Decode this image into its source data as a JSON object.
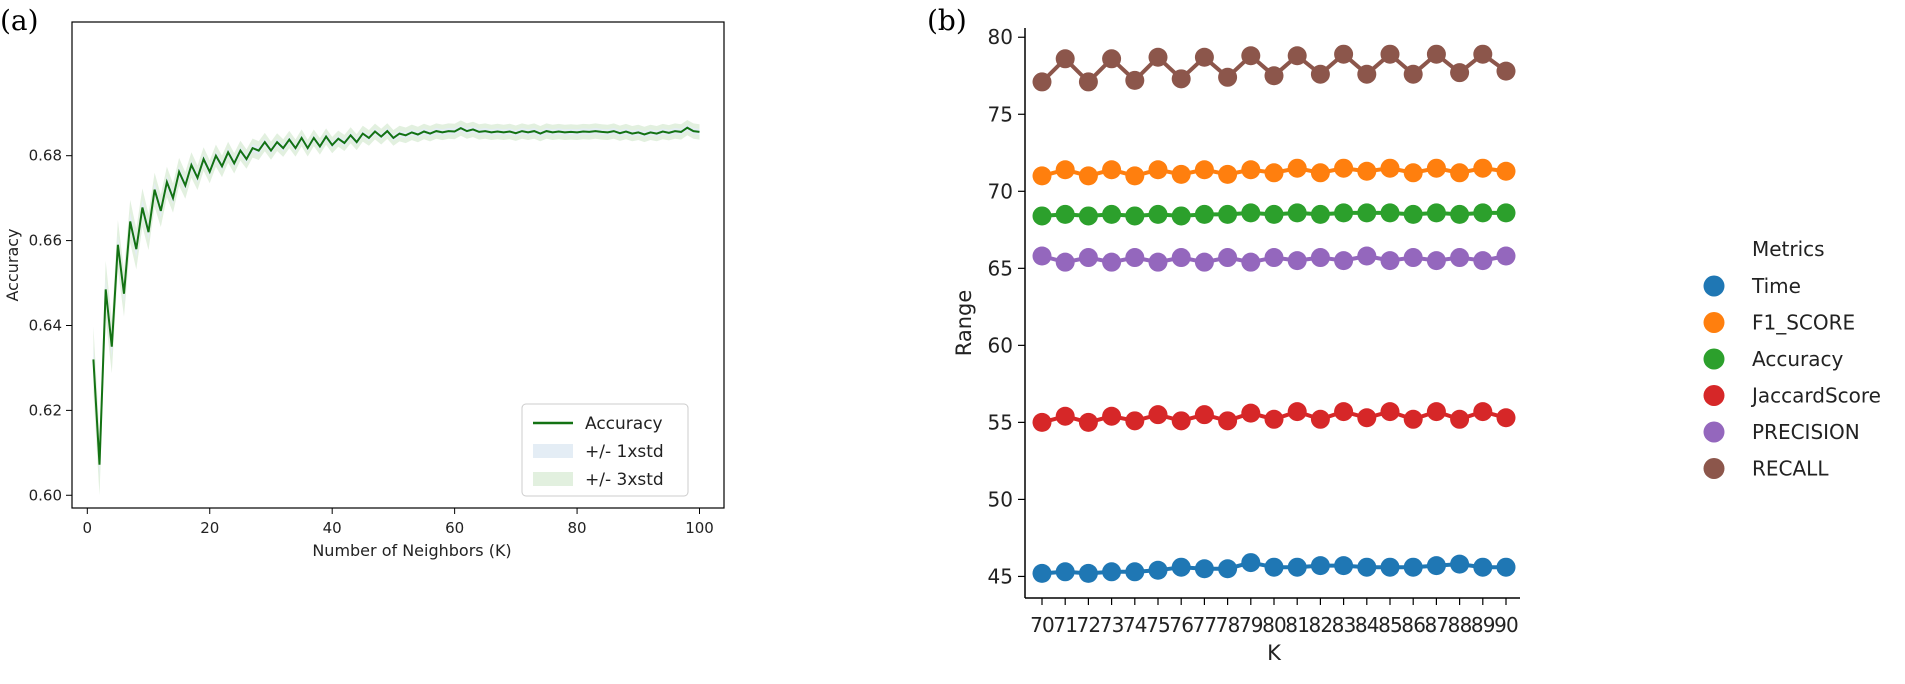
{
  "panels": {
    "a": {
      "tag": "(a)"
    },
    "b": {
      "tag": "(b)"
    }
  },
  "chart_data": [
    {
      "type": "line",
      "xlabel": "Number of Neighbors (K)",
      "ylabel": "Accuracy",
      "xlim": [
        -2.5,
        104
      ],
      "ylim": [
        0.597,
        0.7115
      ],
      "xticks": [
        0,
        20,
        40,
        60,
        80,
        100
      ],
      "yticks": [
        0.6,
        0.62,
        0.64,
        0.66,
        0.68
      ],
      "ytick_labels": [
        "0.60",
        "0.62",
        "0.64",
        "0.66",
        "0.68"
      ],
      "grid": false,
      "legend_position": "lower-right",
      "legend": [
        {
          "label": "Accuracy",
          "kind": "line",
          "color": "#137213"
        },
        {
          "label": "+/- 1xstd",
          "kind": "band",
          "color": "#e4edf5"
        },
        {
          "label": "+/- 3xstd",
          "kind": "band",
          "color": "#e2f0df"
        }
      ],
      "series": [
        {
          "name": "Accuracy",
          "color": "#137213",
          "x": [
            1,
            2,
            3,
            4,
            5,
            6,
            7,
            8,
            9,
            10,
            11,
            12,
            13,
            14,
            15,
            16,
            17,
            18,
            19,
            20,
            21,
            22,
            23,
            24,
            25,
            26,
            27,
            28,
            29,
            30,
            31,
            32,
            33,
            34,
            35,
            36,
            37,
            38,
            39,
            40,
            41,
            42,
            43,
            44,
            45,
            46,
            47,
            48,
            49,
            50,
            51,
            52,
            53,
            54,
            55,
            56,
            57,
            58,
            59,
            60,
            61,
            62,
            63,
            64,
            65,
            66,
            67,
            68,
            69,
            70,
            71,
            72,
            73,
            74,
            75,
            76,
            77,
            78,
            79,
            80,
            81,
            82,
            83,
            84,
            85,
            86,
            87,
            88,
            89,
            90,
            91,
            92,
            93,
            94,
            95,
            96,
            97,
            98,
            99,
            100
          ],
          "values": [
            0.632,
            0.6072,
            0.6485,
            0.635,
            0.659,
            0.6475,
            0.6645,
            0.658,
            0.6678,
            0.662,
            0.672,
            0.667,
            0.6738,
            0.67,
            0.6762,
            0.673,
            0.6778,
            0.6748,
            0.6792,
            0.6762,
            0.68,
            0.6775,
            0.6808,
            0.6782,
            0.6812,
            0.6792,
            0.6818,
            0.6812,
            0.6832,
            0.6812,
            0.6832,
            0.6818,
            0.6838,
            0.6818,
            0.6842,
            0.6818,
            0.6842,
            0.6822,
            0.6845,
            0.6825,
            0.684,
            0.683,
            0.6848,
            0.6832,
            0.6852,
            0.6842,
            0.6857,
            0.6845,
            0.6858,
            0.6842,
            0.6852,
            0.6848,
            0.6855,
            0.685,
            0.6857,
            0.6852,
            0.6858,
            0.6855,
            0.6858,
            0.6857,
            0.6865,
            0.6858,
            0.6862,
            0.6856,
            0.6858,
            0.6855,
            0.6857,
            0.6855,
            0.6857,
            0.6853,
            0.6858,
            0.6855,
            0.6858,
            0.6852,
            0.6858,
            0.6855,
            0.6857,
            0.6855,
            0.6856,
            0.6855,
            0.6857,
            0.6856,
            0.6858,
            0.6856,
            0.6855,
            0.6858,
            0.6853,
            0.6857,
            0.6852,
            0.6855,
            0.685,
            0.6855,
            0.6852,
            0.6857,
            0.6854,
            0.6858,
            0.6856,
            0.6866,
            0.6858,
            0.6856
          ]
        }
      ]
    },
    {
      "type": "line",
      "xlabel": "K",
      "ylabel": "Range",
      "categories": [
        "70",
        "71",
        "72",
        "73",
        "74",
        "75",
        "76",
        "77",
        "78",
        "79",
        "80",
        "81",
        "82",
        "83",
        "84",
        "85",
        "86",
        "87",
        "88",
        "89",
        "90"
      ],
      "ylim": [
        43.6,
        80.6
      ],
      "yticks": [
        45,
        50,
        55,
        60,
        65,
        70,
        75,
        80
      ],
      "grid": false,
      "legend_title": "Metrics",
      "legend_position": "right",
      "series": [
        {
          "name": "Time",
          "color": "#1f77b4",
          "values": [
            45.2,
            45.3,
            45.2,
            45.3,
            45.3,
            45.4,
            45.6,
            45.5,
            45.5,
            45.9,
            45.6,
            45.6,
            45.7,
            45.7,
            45.6,
            45.6,
            45.6,
            45.7,
            45.8,
            45.6,
            45.6
          ]
        },
        {
          "name": "F1_SCORE",
          "color": "#ff7f0e",
          "values": [
            71.0,
            71.4,
            71.0,
            71.4,
            71.0,
            71.4,
            71.1,
            71.4,
            71.1,
            71.4,
            71.2,
            71.5,
            71.2,
            71.5,
            71.3,
            71.5,
            71.2,
            71.5,
            71.2,
            71.5,
            71.3
          ]
        },
        {
          "name": "Accuracy",
          "color": "#2ca02c",
          "values": [
            68.4,
            68.5,
            68.4,
            68.5,
            68.4,
            68.5,
            68.4,
            68.5,
            68.5,
            68.6,
            68.5,
            68.6,
            68.5,
            68.6,
            68.6,
            68.6,
            68.5,
            68.6,
            68.5,
            68.6,
            68.6
          ]
        },
        {
          "name": "JaccardScore",
          "color": "#d62728",
          "values": [
            55.0,
            55.4,
            55.0,
            55.4,
            55.1,
            55.5,
            55.1,
            55.5,
            55.1,
            55.6,
            55.2,
            55.7,
            55.2,
            55.7,
            55.3,
            55.7,
            55.2,
            55.7,
            55.2,
            55.7,
            55.3
          ]
        },
        {
          "name": "PRECISION",
          "color": "#9467bd",
          "values": [
            65.8,
            65.4,
            65.7,
            65.4,
            65.7,
            65.4,
            65.7,
            65.4,
            65.7,
            65.4,
            65.7,
            65.5,
            65.7,
            65.5,
            65.8,
            65.5,
            65.7,
            65.5,
            65.7,
            65.5,
            65.8
          ]
        },
        {
          "name": "RECALL",
          "color": "#8c564b",
          "values": [
            77.1,
            78.6,
            77.1,
            78.6,
            77.2,
            78.7,
            77.3,
            78.7,
            77.4,
            78.8,
            77.5,
            78.8,
            77.6,
            78.9,
            77.6,
            78.9,
            77.6,
            78.9,
            77.7,
            78.9,
            77.8
          ]
        }
      ]
    }
  ]
}
